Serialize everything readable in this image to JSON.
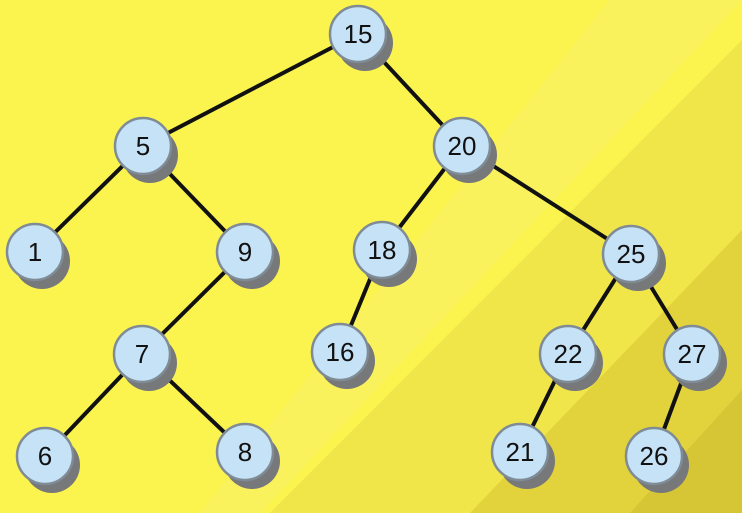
{
  "colors": {
    "background": "#fbf44e",
    "band_light": "#f8f06a",
    "band_mid": "#f0e64a",
    "band_dark": "#e2d23c",
    "node_fill": "#c6e2f7",
    "node_stroke": "#7f8c96",
    "node_shadow": "#77787a",
    "edge": "#111111"
  },
  "nodes": [
    {
      "id": "n15",
      "label": "15"
    },
    {
      "id": "n5",
      "label": "5"
    },
    {
      "id": "n20",
      "label": "20"
    },
    {
      "id": "n1",
      "label": "1"
    },
    {
      "id": "n9",
      "label": "9"
    },
    {
      "id": "n18",
      "label": "18"
    },
    {
      "id": "n25",
      "label": "25"
    },
    {
      "id": "n7",
      "label": "7"
    },
    {
      "id": "n16",
      "label": "16"
    },
    {
      "id": "n22",
      "label": "22"
    },
    {
      "id": "n27",
      "label": "27"
    },
    {
      "id": "n6",
      "label": "6"
    },
    {
      "id": "n8",
      "label": "8"
    },
    {
      "id": "n21",
      "label": "21"
    },
    {
      "id": "n26",
      "label": "26"
    }
  ],
  "edges": [
    {
      "from": "n15",
      "to": "n5"
    },
    {
      "from": "n15",
      "to": "n20"
    },
    {
      "from": "n5",
      "to": "n1"
    },
    {
      "from": "n5",
      "to": "n9"
    },
    {
      "from": "n9",
      "to": "n7"
    },
    {
      "from": "n7",
      "to": "n6"
    },
    {
      "from": "n7",
      "to": "n8"
    },
    {
      "from": "n20",
      "to": "n18"
    },
    {
      "from": "n20",
      "to": "n25"
    },
    {
      "from": "n18",
      "to": "n16"
    },
    {
      "from": "n25",
      "to": "n22"
    },
    {
      "from": "n25",
      "to": "n27"
    },
    {
      "from": "n22",
      "to": "n21"
    },
    {
      "from": "n27",
      "to": "n26"
    }
  ]
}
